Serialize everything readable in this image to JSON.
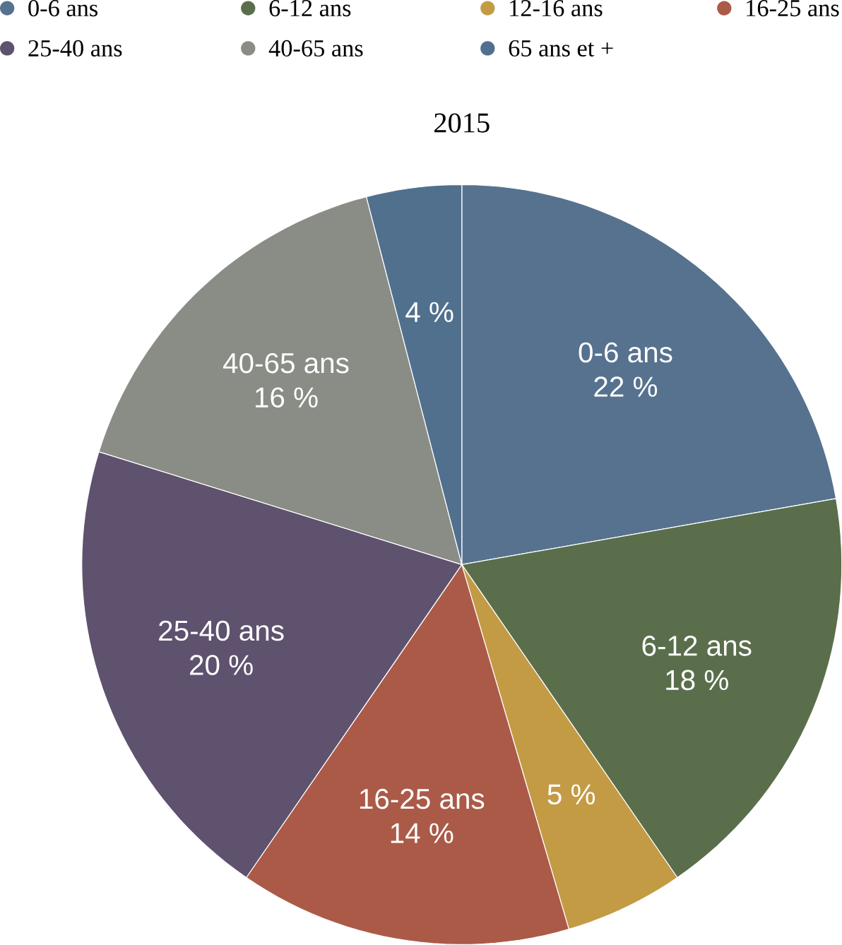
{
  "chart_data": {
    "type": "pie",
    "title": "2015",
    "categories": [
      "0-6 ans",
      "6-12 ans",
      "12-16 ans",
      "16-25 ans",
      "25-40 ans",
      "40-65 ans",
      "65 ans et +"
    ],
    "values": [
      22,
      18,
      5,
      14,
      20,
      16,
      4
    ],
    "value_labels": [
      "22 %",
      "18 %",
      "5 %",
      "14 %",
      "20 %",
      "16 %",
      "4 %"
    ],
    "colors": [
      "#56728f",
      "#5a6e4b",
      "#c39b45",
      "#ab5a48",
      "#5f526e",
      "#8a8d86",
      "#50708e"
    ],
    "legend": "top"
  }
}
